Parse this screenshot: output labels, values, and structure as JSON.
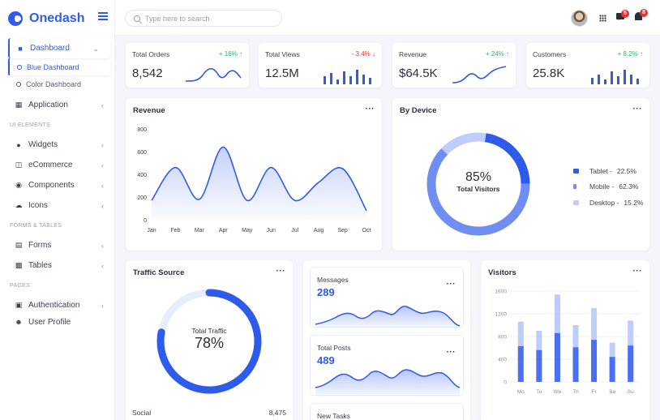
{
  "brand": {
    "name": "Onedash"
  },
  "search": {
    "placeholder": "Type here to search"
  },
  "notifications": {
    "messages_count": "5",
    "alerts_count": "8"
  },
  "sidebar": {
    "dashboard": "Dashboard",
    "blue_dashboard": "Blue Dashboard",
    "color_dashboard": "Color Dashboard",
    "application": "Application",
    "ui_section": "UI ELEMENTS",
    "widgets": "Widgets",
    "ecommerce": "eCommerce",
    "components": "Components",
    "icons": "Icons",
    "forms_section": "FORMS & TABLES",
    "forms": "Forms",
    "tables": "Tables",
    "pages_section": "PAGES",
    "authentication": "Authentication",
    "user_profile": "User Profile"
  },
  "stats": [
    {
      "title": "Total Orders",
      "change": "+ 16% ↑",
      "value": "8,542",
      "trend": "up"
    },
    {
      "title": "Total Views",
      "change": "- 3.4% ↓",
      "value": "12.5M",
      "trend": "down"
    },
    {
      "title": "Revenue",
      "change": "+ 24% ↑",
      "value": "$64.5K",
      "trend": "up"
    },
    {
      "title": "Customers",
      "change": "+ 8.2% ↑",
      "value": "25.8K",
      "trend": "up"
    }
  ],
  "revenue": {
    "title": "Revenue",
    "more": "···"
  },
  "device": {
    "title": "By Device",
    "more": "···",
    "center_value": "85%",
    "center_label": "Total Visitors",
    "legend": [
      {
        "name": "Tablet",
        "pct": "22.5%",
        "color": "#2f5bea"
      },
      {
        "name": "Mobile",
        "pct": "62.3%",
        "color": "#6f8ef2"
      },
      {
        "name": "Desktop",
        "pct": "15.2%",
        "color": "#bfcdfa"
      }
    ]
  },
  "traffic": {
    "title": "Traffic Source",
    "more": "···",
    "center_label": "Total Traffic",
    "center_value": "78%",
    "percent": 0.78,
    "footer_label": "Social",
    "footer_value": "8,475"
  },
  "messages": {
    "title": "Messages",
    "value": "289",
    "more": "···"
  },
  "posts": {
    "title": "Total Posts",
    "value": "489",
    "more": "···"
  },
  "tasks": {
    "title": "New Tasks"
  },
  "visitors": {
    "title": "Visitors",
    "more": "···"
  },
  "colors": {
    "primary": "#2f5bea",
    "light": "#bfcdfa",
    "up": "#22b573",
    "down": "#e8322f"
  },
  "chart_data": [
    {
      "type": "area",
      "title": "Revenue",
      "categories": [
        "Jan",
        "Feb",
        "Mar",
        "Apr",
        "May",
        "Jun",
        "Jul",
        "Aug",
        "Sep",
        "Oct"
      ],
      "values": [
        170,
        460,
        180,
        640,
        170,
        460,
        170,
        330,
        450,
        80
      ],
      "yticks": [
        0,
        200,
        400,
        600,
        800
      ],
      "ylim": [
        0,
        800
      ]
    },
    {
      "type": "pie",
      "title": "By Device",
      "categories": [
        "Tablet",
        "Mobile",
        "Desktop"
      ],
      "values": [
        22.5,
        62.3,
        15.2
      ]
    },
    {
      "type": "bar",
      "title": "Visitors",
      "categories": [
        "Mo",
        "Tu",
        "We",
        "Th",
        "Fr",
        "Sa",
        "Su"
      ],
      "yticks": [
        0,
        400,
        800,
        1200,
        1600
      ],
      "ylim": [
        0,
        1600
      ],
      "series": [
        {
          "values": [
            630,
            560,
            860,
            610,
            740,
            440,
            640
          ]
        },
        {
          "values": [
            1060,
            900,
            1540,
            1000,
            1300,
            690,
            1080
          ]
        }
      ]
    }
  ]
}
